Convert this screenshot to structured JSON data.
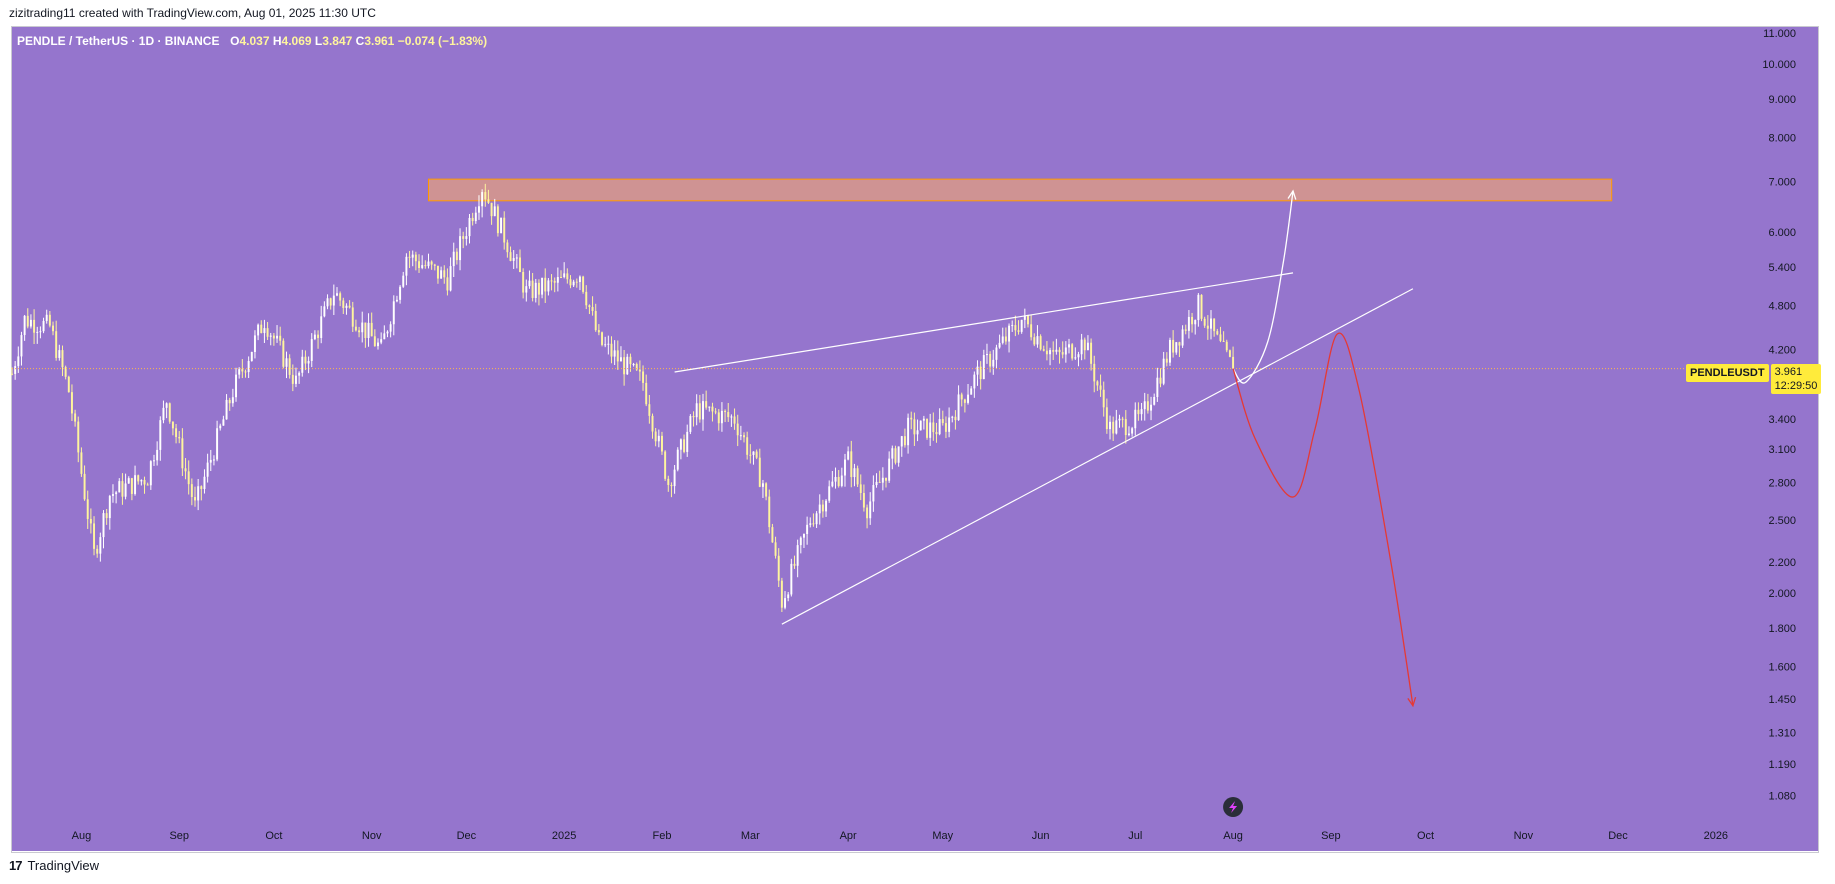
{
  "header": {
    "caption": "zizitrading11 created with TradingView.com, Aug 01, 2025 11:30 UTC"
  },
  "legend": {
    "symbol_text": "PENDLE / TetherUS · 1D · BINANCE",
    "open_label": "O",
    "open": "4.037",
    "high_label": "H",
    "high": "4.069",
    "low_label": "L",
    "low": "3.847",
    "close_label": "C",
    "close": "3.961",
    "change": "−0.074 (−1.83%)"
  },
  "price_badge": {
    "symbol": "PENDLEUSDT",
    "price": "3.961",
    "countdown": "12:29:50"
  },
  "footer": {
    "brand": "TradingView",
    "logo_glyph": "17"
  },
  "colors": {
    "background": "#9575cd",
    "candle_up": "#ffffff",
    "candle_down": "#fff59d",
    "zone_fill": "#e8a07a",
    "zone_border": "#ff9800",
    "trend_lines": "#ffffff",
    "bearish_path": "#e53935",
    "bullish_path": "#ffffff",
    "badge": "#ffeb3b",
    "last_price_line": "#ffb74d"
  },
  "chart_data": {
    "type": "candlestick",
    "symbol": "PENDLE / TetherUS",
    "timeframe": "1D",
    "exchange": "BINANCE",
    "y_scale": "log",
    "ylim": [
      1.0,
      11.2
    ],
    "y_ticks": [
      "11.000",
      "10.000",
      "9.000",
      "8.000",
      "7.000",
      "6.000",
      "5.400",
      "4.800",
      "4.200",
      "3.400",
      "3.100",
      "2.800",
      "2.500",
      "2.200",
      "2.000",
      "1.800",
      "1.600",
      "1.450",
      "1.310",
      "1.190",
      "1.080"
    ],
    "x_range": [
      "2024-07-10",
      "2026-01-15"
    ],
    "x_ticks": [
      {
        "date": "2024-08-01",
        "label": "Aug"
      },
      {
        "date": "2024-09-01",
        "label": "Sep"
      },
      {
        "date": "2024-10-01",
        "label": "Oct"
      },
      {
        "date": "2024-11-01",
        "label": "Nov"
      },
      {
        "date": "2024-12-01",
        "label": "Dec"
      },
      {
        "date": "2025-01-01",
        "label": "2025"
      },
      {
        "date": "2025-02-01",
        "label": "Feb"
      },
      {
        "date": "2025-03-01",
        "label": "Mar"
      },
      {
        "date": "2025-04-01",
        "label": "Apr"
      },
      {
        "date": "2025-05-01",
        "label": "May"
      },
      {
        "date": "2025-06-01",
        "label": "Jun"
      },
      {
        "date": "2025-07-01",
        "label": "Jul"
      },
      {
        "date": "2025-08-01",
        "label": "Aug"
      },
      {
        "date": "2025-09-01",
        "label": "Sep"
      },
      {
        "date": "2025-10-01",
        "label": "Oct"
      },
      {
        "date": "2025-11-01",
        "label": "Nov"
      },
      {
        "date": "2025-12-01",
        "label": "Dec"
      },
      {
        "date": "2026-01-01",
        "label": "2026"
      }
    ],
    "last_price": 3.961,
    "price_anchors": [
      {
        "date": "2024-07-10",
        "price": 3.9
      },
      {
        "date": "2024-07-14",
        "price": 4.6
      },
      {
        "date": "2024-07-22",
        "price": 4.5
      },
      {
        "date": "2024-07-28",
        "price": 3.7
      },
      {
        "date": "2024-08-05",
        "price": 2.25
      },
      {
        "date": "2024-08-10",
        "price": 2.7
      },
      {
        "date": "2024-08-22",
        "price": 2.85
      },
      {
        "date": "2024-08-28",
        "price": 3.6
      },
      {
        "date": "2024-09-06",
        "price": 2.6
      },
      {
        "date": "2024-09-18",
        "price": 3.7
      },
      {
        "date": "2024-09-28",
        "price": 4.6
      },
      {
        "date": "2024-10-08",
        "price": 3.8
      },
      {
        "date": "2024-10-20",
        "price": 5.0
      },
      {
        "date": "2024-11-04",
        "price": 4.2
      },
      {
        "date": "2024-11-12",
        "price": 5.6
      },
      {
        "date": "2024-11-25",
        "price": 5.2
      },
      {
        "date": "2024-12-06",
        "price": 6.9
      },
      {
        "date": "2024-12-14",
        "price": 5.8
      },
      {
        "date": "2024-12-20",
        "price": 5.0
      },
      {
        "date": "2024-12-28",
        "price": 5.1
      },
      {
        "date": "2025-01-06",
        "price": 5.3
      },
      {
        "date": "2025-01-12",
        "price": 4.3
      },
      {
        "date": "2025-01-26",
        "price": 3.8
      },
      {
        "date": "2025-02-03",
        "price": 2.8
      },
      {
        "date": "2025-02-12",
        "price": 3.5
      },
      {
        "date": "2025-02-24",
        "price": 3.4
      },
      {
        "date": "2025-03-05",
        "price": 2.8
      },
      {
        "date": "2025-03-11",
        "price": 1.95
      },
      {
        "date": "2025-03-20",
        "price": 2.5
      },
      {
        "date": "2025-04-01",
        "price": 3.0
      },
      {
        "date": "2025-04-07",
        "price": 2.6
      },
      {
        "date": "2025-04-20",
        "price": 3.3
      },
      {
        "date": "2025-05-01",
        "price": 3.3
      },
      {
        "date": "2025-05-12",
        "price": 3.9
      },
      {
        "date": "2025-05-26",
        "price": 4.6
      },
      {
        "date": "2025-06-06",
        "price": 4.1
      },
      {
        "date": "2025-06-15",
        "price": 4.3
      },
      {
        "date": "2025-06-23",
        "price": 3.3
      },
      {
        "date": "2025-07-03",
        "price": 3.4
      },
      {
        "date": "2025-07-12",
        "price": 4.2
      },
      {
        "date": "2025-07-21",
        "price": 4.8
      },
      {
        "date": "2025-07-27",
        "price": 4.3
      },
      {
        "date": "2025-08-01",
        "price": 3.96
      }
    ],
    "resistance_zone": {
      "start": "2024-11-19",
      "end": "2025-11-29",
      "price_low": 6.6,
      "price_high": 7.05
    },
    "trendlines": [
      {
        "name": "upper",
        "start": {
          "date": "2025-02-05",
          "price": 3.92
        },
        "end": {
          "date": "2025-08-20",
          "price": 5.3
        }
      },
      {
        "name": "lower",
        "start": {
          "date": "2025-03-11",
          "price": 1.82
        },
        "end": {
          "date": "2025-09-27",
          "price": 5.05
        }
      }
    ],
    "projections": [
      {
        "name": "bullish",
        "points": [
          {
            "date": "2025-08-01",
            "price": 3.96
          },
          {
            "date": "2025-08-05",
            "price": 3.8
          },
          {
            "date": "2025-08-12",
            "price": 4.3
          },
          {
            "date": "2025-08-17",
            "price": 5.5
          },
          {
            "date": "2025-08-20",
            "price": 6.8
          }
        ]
      },
      {
        "name": "bearish",
        "points": [
          {
            "date": "2025-08-01",
            "price": 3.96
          },
          {
            "date": "2025-08-08",
            "price": 3.2
          },
          {
            "date": "2025-08-20",
            "price": 2.68
          },
          {
            "date": "2025-08-27",
            "price": 3.3
          },
          {
            "date": "2025-09-03",
            "price": 4.4
          },
          {
            "date": "2025-09-10",
            "price": 3.7
          },
          {
            "date": "2025-09-20",
            "price": 2.2
          },
          {
            "date": "2025-09-27",
            "price": 1.42
          }
        ]
      }
    ]
  }
}
